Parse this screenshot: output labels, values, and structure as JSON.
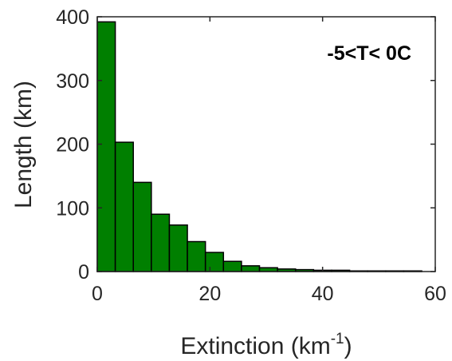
{
  "chart_data": {
    "type": "bar",
    "bin_width": 3.2,
    "x_start": 0,
    "values": [
      392,
      203,
      140,
      90,
      73,
      47,
      30,
      16,
      9,
      6,
      4,
      3,
      2,
      2,
      1,
      1,
      1,
      1
    ],
    "xlim": [
      0,
      60
    ],
    "ylim": [
      0,
      400
    ],
    "xticks": [
      "0",
      "20",
      "40",
      "60"
    ],
    "yticks": [
      "0",
      "100",
      "200",
      "300",
      "400"
    ],
    "xlabel": "Extinction  (km",
    "xlabel_superscript": "-1",
    "xlabel_suffix": ")",
    "ylabel": "Length (km)",
    "annotation": "-5<T< 0C",
    "bar_color": "#007f00",
    "edge_color": "#000000",
    "grid": false
  }
}
